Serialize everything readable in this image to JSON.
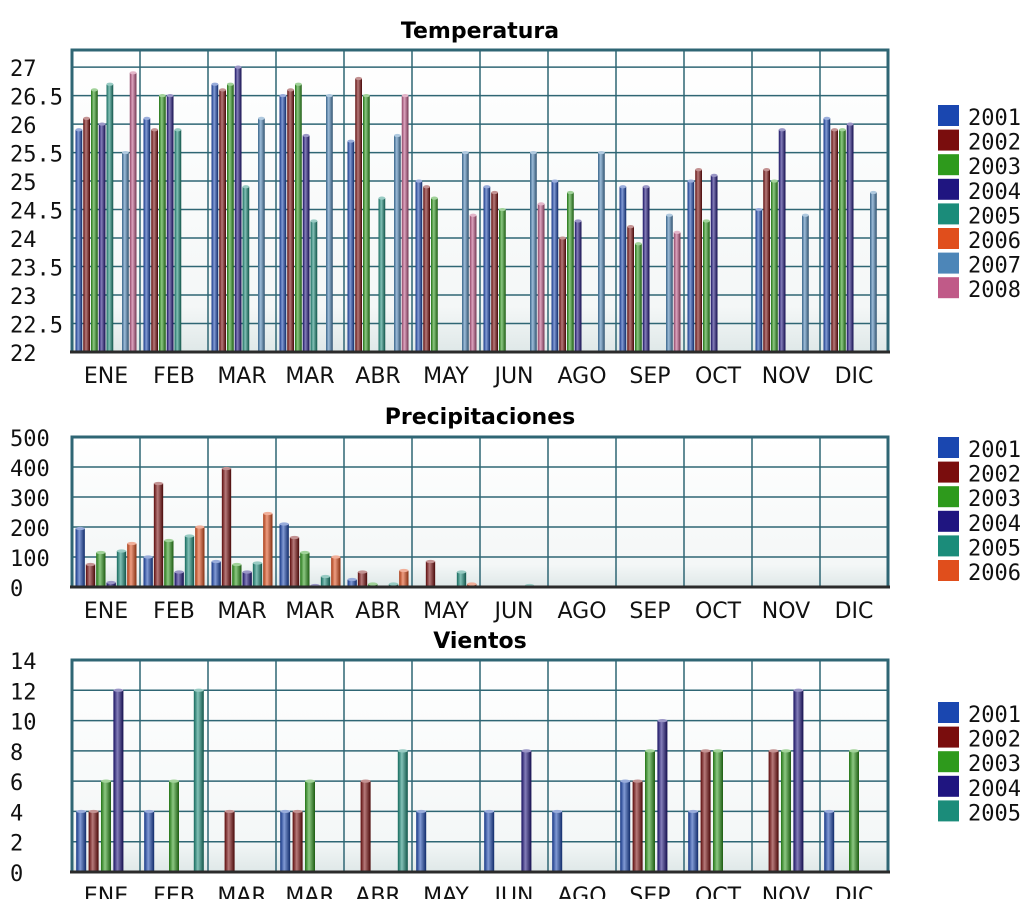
{
  "colors": {
    "2001": "#1a47b0",
    "2002": "#7a0d0d",
    "2003": "#2e9a1c",
    "2004": "#1f1580",
    "2005": "#1b8c7a",
    "2006": "#e04e1c",
    "2007": "#4d86b8",
    "2008": "#c05a88"
  },
  "chart_data": [
    {
      "type": "bar",
      "title": "Temperatura",
      "categories": [
        "ENE",
        "FEB",
        "MAR",
        "MAR",
        "ABR",
        "MAY",
        "JUN",
        "AGO",
        "SEP",
        "OCT",
        "NOV",
        "DIC"
      ],
      "yticks": [
        "22",
        "22.5",
        "23",
        "23.5",
        "24",
        "24.5",
        "25",
        "25.5",
        "26",
        "26.5",
        "27"
      ],
      "ylim": [
        22,
        27.3
      ],
      "grid": true,
      "legend": "right",
      "series": [
        {
          "name": "2001",
          "values": [
            25.9,
            26.1,
            26.7,
            26.5,
            25.7,
            25.0,
            24.9,
            25.0,
            24.9,
            25.0,
            24.5,
            26.1
          ]
        },
        {
          "name": "2002",
          "values": [
            26.1,
            25.9,
            26.6,
            26.6,
            26.8,
            24.9,
            24.8,
            24.0,
            24.2,
            25.2,
            25.2,
            25.9
          ]
        },
        {
          "name": "2003",
          "values": [
            26.6,
            26.5,
            26.7,
            26.7,
            26.5,
            24.7,
            24.5,
            24.8,
            23.9,
            24.3,
            25.0,
            25.9
          ]
        },
        {
          "name": "2004",
          "values": [
            26.0,
            26.5,
            27.0,
            25.8,
            null,
            null,
            null,
            24.3,
            24.9,
            25.1,
            25.9,
            26.0
          ]
        },
        {
          "name": "2005",
          "values": [
            26.7,
            25.9,
            24.9,
            24.3,
            24.7,
            null,
            null,
            null,
            null,
            null,
            null,
            null
          ]
        },
        {
          "name": "2006",
          "values": [
            null,
            null,
            null,
            null,
            null,
            null,
            null,
            null,
            null,
            null,
            null,
            null
          ]
        },
        {
          "name": "2007",
          "values": [
            25.5,
            null,
            26.1,
            26.5,
            25.8,
            25.5,
            25.5,
            25.5,
            24.4,
            null,
            24.4,
            24.8
          ]
        },
        {
          "name": "2008",
          "values": [
            26.9,
            null,
            null,
            null,
            26.5,
            24.4,
            24.6,
            null,
            24.1,
            null,
            null,
            null
          ]
        }
      ]
    },
    {
      "type": "bar",
      "title": "Precipitaciones",
      "categories": [
        "ENE",
        "FEB",
        "MAR",
        "MAR",
        "ABR",
        "MAY",
        "JUN",
        "AGO",
        "SEP",
        "OCT",
        "NOV",
        "DIC"
      ],
      "yticks": [
        "0",
        "100",
        "200",
        "300",
        "400",
        "500"
      ],
      "ylim": [
        0,
        500
      ],
      "grid": true,
      "legend": "right",
      "series": [
        {
          "name": "2001",
          "values": [
            195,
            100,
            85,
            210,
            25,
            0,
            0,
            0,
            0,
            0,
            0,
            0
          ]
        },
        {
          "name": "2002",
          "values": [
            75,
            345,
            395,
            165,
            50,
            85,
            0,
            0,
            0,
            0,
            0,
            0
          ]
        },
        {
          "name": "2003",
          "values": [
            115,
            155,
            75,
            115,
            10,
            0,
            0,
            0,
            0,
            0,
            0,
            0
          ]
        },
        {
          "name": "2004",
          "values": [
            15,
            50,
            50,
            5,
            0,
            0,
            0,
            0,
            0,
            0,
            0,
            0
          ]
        },
        {
          "name": "2005",
          "values": [
            120,
            170,
            80,
            35,
            10,
            50,
            5,
            0,
            0,
            0,
            0,
            0
          ]
        },
        {
          "name": "2006",
          "values": [
            145,
            200,
            245,
            100,
            55,
            10,
            0,
            0,
            0,
            0,
            0,
            0
          ]
        }
      ]
    },
    {
      "type": "bar",
      "title": "Vientos",
      "categories": [
        "ENE",
        "FEB",
        "MAR",
        "MAR",
        "ABR",
        "MAY",
        "JUN",
        "AGO",
        "SEP",
        "OCT",
        "NOV",
        "DIC"
      ],
      "yticks": [
        "0",
        "2",
        "4",
        "6",
        "8",
        "10",
        "12",
        "14"
      ],
      "ylim": [
        0,
        14
      ],
      "grid": true,
      "legend": "right",
      "series": [
        {
          "name": "2001",
          "values": [
            4,
            4,
            null,
            4,
            null,
            4,
            4,
            4,
            6,
            4,
            null,
            4
          ]
        },
        {
          "name": "2002",
          "values": [
            4,
            null,
            4,
            4,
            6,
            null,
            null,
            null,
            6,
            8,
            8,
            null
          ]
        },
        {
          "name": "2003",
          "values": [
            6,
            6,
            null,
            6,
            null,
            null,
            null,
            null,
            8,
            8,
            8,
            8
          ]
        },
        {
          "name": "2004",
          "values": [
            12,
            null,
            null,
            null,
            null,
            null,
            8,
            null,
            10,
            null,
            12,
            null
          ]
        },
        {
          "name": "2005",
          "values": [
            null,
            12,
            null,
            null,
            8,
            null,
            null,
            null,
            null,
            null,
            null,
            null
          ]
        }
      ]
    }
  ]
}
